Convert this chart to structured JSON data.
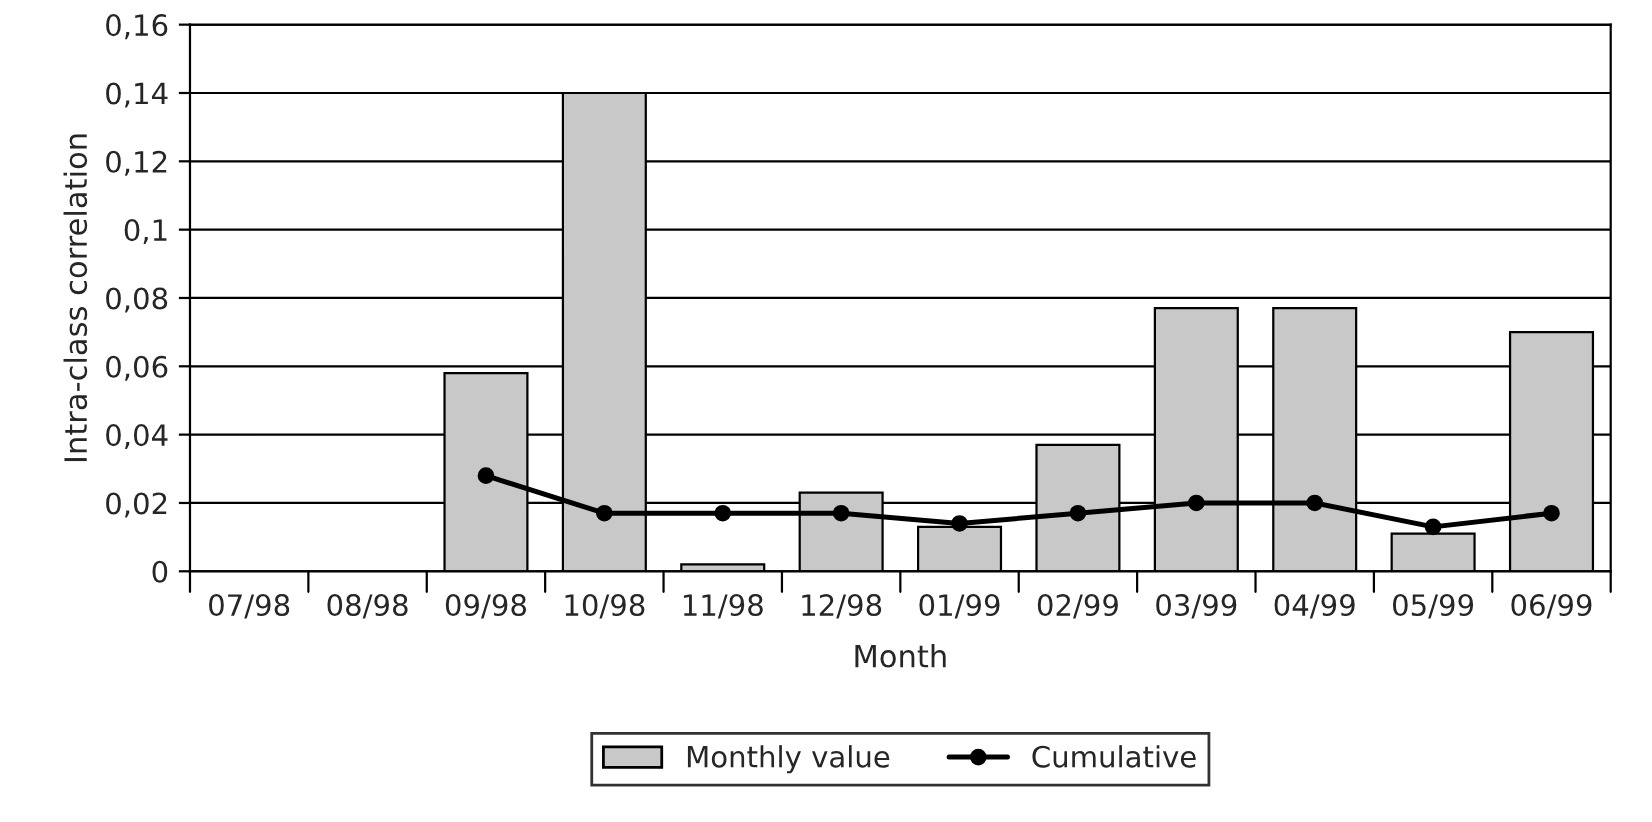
{
  "chart_data": {
    "type": "bar",
    "xlabel": "Month",
    "ylabel": "Intra-class correlation",
    "categories": [
      "07/98",
      "08/98",
      "09/98",
      "10/98",
      "11/98",
      "12/98",
      "01/99",
      "02/99",
      "03/99",
      "04/99",
      "05/99",
      "06/99"
    ],
    "series": [
      {
        "name": "Monthly value",
        "color": "#c8c8c8",
        "values": [
          null,
          null,
          0.058,
          0.14,
          0.002,
          0.023,
          0.013,
          0.037,
          0.077,
          0.077,
          0.011,
          0.07
        ]
      },
      {
        "name": "Cumulative",
        "type": "line",
        "color": "#000000",
        "marker": "circle",
        "line_style": "solid",
        "values": [
          null,
          null,
          0.028,
          0.017,
          0.017,
          0.017,
          0.014,
          0.017,
          0.02,
          0.02,
          0.013,
          0.017
        ]
      }
    ],
    "ylim": [
      0,
      0.16
    ],
    "yticks": [
      {
        "value": 0,
        "label": "0"
      },
      {
        "value": 0.02,
        "label": "0,02"
      },
      {
        "value": 0.04,
        "label": "0,04"
      },
      {
        "value": 0.06,
        "label": "0,06"
      },
      {
        "value": 0.08,
        "label": "0,08"
      },
      {
        "value": 0.1,
        "label": "0,1"
      },
      {
        "value": 0.12,
        "label": "0,12"
      },
      {
        "value": 0.14,
        "label": "0,14"
      },
      {
        "value": 0.16,
        "label": "0,16"
      }
    ],
    "grid": "y",
    "legend": "bottom"
  }
}
